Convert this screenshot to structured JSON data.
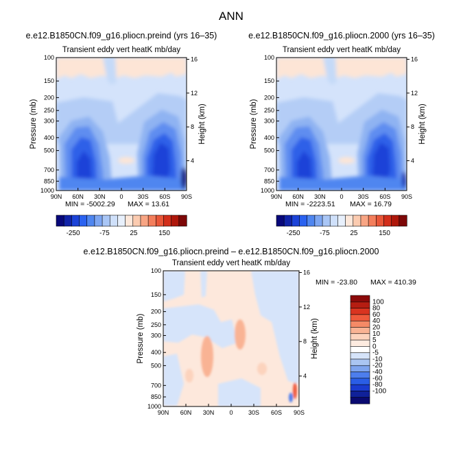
{
  "figure": {
    "title": "ANN",
    "colors": {
      "palette": [
        "#08087a",
        "#1023a8",
        "#1c43d8",
        "#2a62f0",
        "#4f86f0",
        "#7da6f2",
        "#a9c6f6",
        "#cfe0fa",
        "#e8f0fc",
        "#fde8db",
        "#fbcbb0",
        "#f8a584",
        "#f37e5c",
        "#e85638",
        "#d22e1a",
        "#ae170b",
        "#7d0808"
      ],
      "light_blue": "#d4e3fb",
      "light_peach": "#fde5d6",
      "frame": "#000000"
    }
  },
  "chart_data": [
    {
      "id": "preind",
      "type": "heatmap",
      "title": "e.e12.B1850CN.f09_g16.pliocn.preind (yrs 16–35)",
      "subtitle": "Transient eddy vert heatK mb/day",
      "ylabel": "Pressure (mb)",
      "y2label": "Height (km)",
      "x_ticks": [
        "90N",
        "60N",
        "30N",
        "0",
        "30S",
        "60S",
        "90S"
      ],
      "x_values": [
        90,
        60,
        30,
        0,
        -30,
        -60,
        -90
      ],
      "y_ticks": [
        "100",
        "150",
        "200",
        "250",
        "300",
        "400",
        "500",
        "700",
        "850",
        "1000"
      ],
      "y_values": [
        100,
        150,
        200,
        250,
        300,
        400,
        500,
        700,
        850,
        1000
      ],
      "height_ticks": [
        "16",
        "12",
        "8",
        "4"
      ],
      "height_values": [
        16,
        12,
        8,
        4
      ],
      "stats": {
        "min_label": "MIN = -5002.29",
        "max_label": "MAX = 13.61",
        "min": -5002.29,
        "max": 13.61
      },
      "colorbar_labels": [
        "-250",
        "-75",
        "25",
        "150"
      ]
    },
    {
      "id": "y2000",
      "type": "heatmap",
      "title": "e.e12.B1850CN.f09_g16.pliocn.2000 (yrs 16–35)",
      "subtitle": "Transient eddy vert heatK mb/day",
      "ylabel": "Pressure (mb)",
      "y2label": "Height (km)",
      "x_ticks": [
        "90N",
        "60N",
        "30N",
        "0",
        "30S",
        "60S",
        "90S"
      ],
      "x_values": [
        90,
        60,
        30,
        0,
        -30,
        -60,
        -90
      ],
      "y_ticks": [
        "100",
        "150",
        "200",
        "250",
        "300",
        "400",
        "500",
        "700",
        "850",
        "1000"
      ],
      "y_values": [
        100,
        150,
        200,
        250,
        300,
        400,
        500,
        700,
        850,
        1000
      ],
      "height_ticks": [
        "16",
        "12",
        "8",
        "4"
      ],
      "height_values": [
        16,
        12,
        8,
        4
      ],
      "stats": {
        "min_label": "MIN = -2223.51",
        "max_label": "MAX = 16.79",
        "min": -2223.51,
        "max": 16.79
      },
      "colorbar_labels": [
        "-250",
        "-75",
        "25",
        "150"
      ]
    },
    {
      "id": "diff",
      "type": "heatmap",
      "title": "e.e12.B1850CN.f09_g16.pliocn.preind – e.e12.B1850CN.f09_g16.pliocn.2000",
      "subtitle": "Transient eddy vert heatK mb/day",
      "ylabel": "Pressure (mb)",
      "y2label": "Height (km)",
      "x_ticks": [
        "90N",
        "60N",
        "30N",
        "0",
        "30S",
        "60S",
        "90S"
      ],
      "x_values": [
        90,
        60,
        30,
        0,
        -30,
        -60,
        -90
      ],
      "y_ticks": [
        "100",
        "150",
        "200",
        "250",
        "300",
        "400",
        "500",
        "700",
        "850",
        "1000"
      ],
      "y_values": [
        100,
        150,
        200,
        250,
        300,
        400,
        500,
        700,
        850,
        1000
      ],
      "height_ticks": [
        "16",
        "12",
        "8",
        "4"
      ],
      "height_values": [
        16,
        12,
        8,
        4
      ],
      "stats": {
        "min_label": "MIN = -23.80",
        "max_label": "MAX = 410.39",
        "min": -23.8,
        "max": 410.39
      },
      "colorbar_labels": [
        "100",
        "80",
        "60",
        "40",
        "20",
        "10",
        "5",
        "0",
        "-5",
        "-10",
        "-20",
        "-40",
        "-60",
        "-80",
        "-100"
      ],
      "colorbar_colors": [
        "#8b0a0a",
        "#b51d12",
        "#d93420",
        "#ee5a3c",
        "#f58a66",
        "#f9b394",
        "#fcd3bd",
        "#fdebe0",
        "#ffffff",
        "#d6e4fa",
        "#aac5f2",
        "#7ea4ee",
        "#4d7eed",
        "#2a5de6",
        "#1a3bcf",
        "#102199",
        "#0a0a70"
      ]
    }
  ]
}
